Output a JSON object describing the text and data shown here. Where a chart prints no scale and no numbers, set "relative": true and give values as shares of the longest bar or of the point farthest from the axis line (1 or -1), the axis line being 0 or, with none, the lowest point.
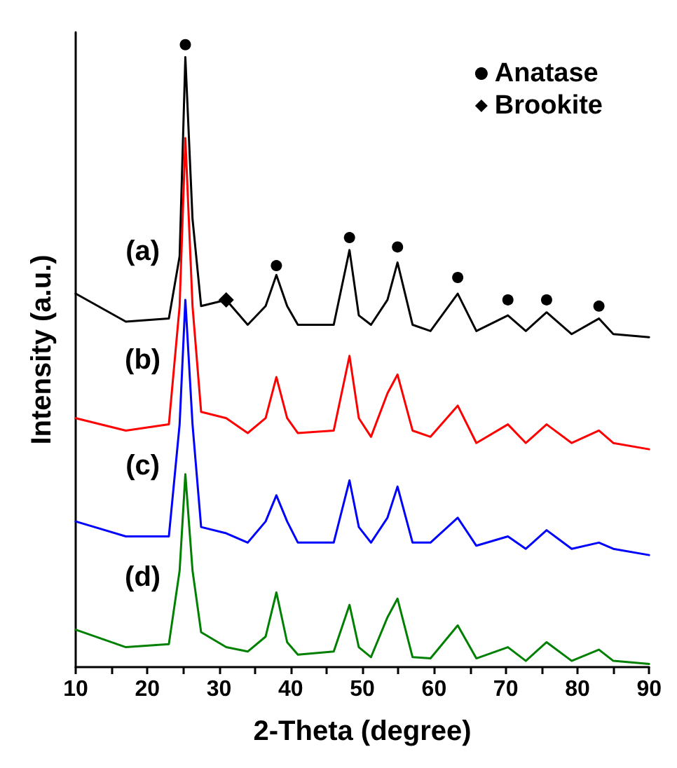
{
  "chart_data": {
    "type": "line",
    "relative": true,
    "xlabel": "2-Theta (degree)",
    "ylabel": "Intensity (a.u.)",
    "xlim": [
      10,
      90
    ],
    "xticks": [
      10,
      {
        "value": 15,
        "label": null
      },
      20,
      {
        "value": 25,
        "label": null
      },
      30,
      {
        "value": 35,
        "label": null
      },
      40,
      {
        "value": 45,
        "label": null
      },
      50,
      {
        "value": 55,
        "label": null
      },
      60,
      {
        "value": 65,
        "label": null
      },
      70,
      {
        "value": 75,
        "label": null
      },
      80,
      {
        "value": 85,
        "label": null
      },
      90
    ],
    "x": [
      10,
      17,
      23,
      24.5,
      25.3,
      26.3,
      27.5,
      31,
      34,
      36.5,
      38,
      39.5,
      41,
      46,
      48.2,
      49.5,
      51.2,
      53.5,
      54.9,
      57,
      59.5,
      63.3,
      65.9,
      70.3,
      72.8,
      75.7,
      79.2,
      83,
      85,
      90
    ],
    "grid": false,
    "legend": "top right",
    "line_style": "solid",
    "series": [
      {
        "name": "(a)",
        "color": "#000000",
        "values": [
          0.6,
          0.555,
          0.56,
          0.66,
          0.98,
          0.72,
          0.58,
          0.59,
          0.55,
          0.58,
          0.63,
          0.58,
          0.55,
          0.55,
          0.67,
          0.565,
          0.55,
          0.59,
          0.65,
          0.55,
          0.54,
          0.6,
          0.54,
          0.565,
          0.54,
          0.57,
          0.535,
          0.56,
          0.535,
          0.53
        ]
      },
      {
        "name": "(b)",
        "color": "#ff0000",
        "values": [
          0.4,
          0.38,
          0.39,
          0.58,
          0.85,
          0.58,
          0.41,
          0.4,
          0.376,
          0.4,
          0.466,
          0.4,
          0.376,
          0.38,
          0.5,
          0.4,
          0.37,
          0.44,
          0.47,
          0.38,
          0.37,
          0.42,
          0.36,
          0.39,
          0.36,
          0.39,
          0.36,
          0.38,
          0.36,
          0.35
        ]
      },
      {
        "name": "(c)",
        "color": "#0000ff",
        "values": [
          0.234,
          0.21,
          0.21,
          0.39,
          0.59,
          0.39,
          0.225,
          0.215,
          0.2,
          0.234,
          0.276,
          0.234,
          0.2,
          0.2,
          0.3,
          0.225,
          0.2,
          0.24,
          0.29,
          0.2,
          0.2,
          0.24,
          0.195,
          0.21,
          0.19,
          0.22,
          0.19,
          0.2,
          0.19,
          0.18
        ]
      },
      {
        "name": "(d)",
        "color": "#008000",
        "values": [
          0.06,
          0.032,
          0.037,
          0.155,
          0.31,
          0.155,
          0.056,
          0.032,
          0.025,
          0.049,
          0.12,
          0.04,
          0.02,
          0.025,
          0.1,
          0.032,
          0.016,
          0.08,
          0.11,
          0.016,
          0.014,
          0.067,
          0.014,
          0.032,
          0.01,
          0.04,
          0.01,
          0.028,
          0.01,
          0.005
        ]
      },
      {
        "name": "Anatase",
        "type": "scatter",
        "marker": "circle",
        "color": "#000000",
        "x": [
          25.3,
          38,
          48.2,
          54.9,
          63.3,
          70.3,
          75.7,
          83
        ],
        "values": [
          1,
          0.645,
          0.69,
          0.675,
          0.626,
          0.59,
          0.59,
          0.58
        ]
      },
      {
        "name": "Brookite",
        "type": "scatter",
        "marker": "diamond",
        "color": "#000000",
        "x": [
          31
        ],
        "values": [
          0.59
        ]
      }
    ]
  }
}
